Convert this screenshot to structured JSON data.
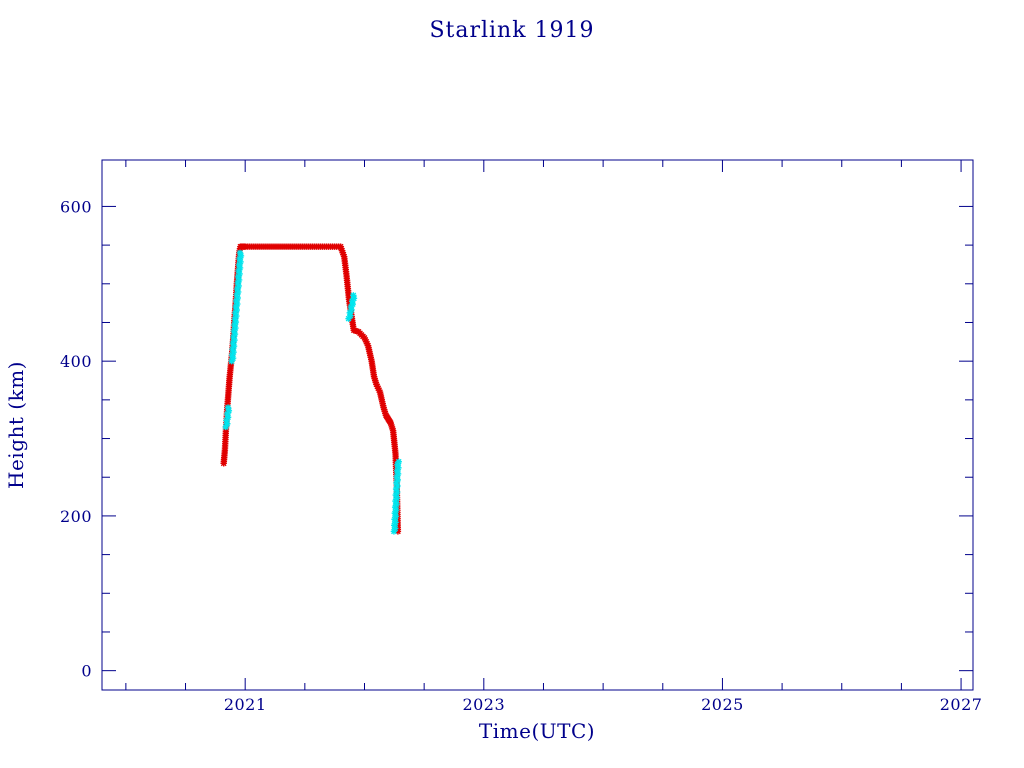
{
  "chart_data": {
    "type": "scatter",
    "title": "Starlink 1919",
    "xlabel": "Time(UTC)",
    "ylabel": "Height (km)",
    "xlim": [
      2019.8,
      2027.1
    ],
    "ylim": [
      -25,
      660
    ],
    "x_ticks": [
      2021,
      2023,
      2025,
      2027
    ],
    "x_tick_labels": [
      "2021",
      "2023",
      "2025",
      "2027"
    ],
    "y_ticks": [
      0,
      200,
      400,
      600
    ],
    "y_tick_labels": [
      "0",
      "200",
      "400",
      "600"
    ],
    "grid": false,
    "colors": {
      "axis": "#00008b",
      "text": "#00008b",
      "series_primary": "#e00000",
      "series_secondary": "#00e5ee",
      "line": "#000000"
    },
    "series": [
      {
        "marker": "asterisk",
        "x": [
          2020.82,
          2020.83,
          2020.84,
          2020.85,
          2020.86,
          2020.87,
          2020.88,
          2020.89,
          2020.9,
          2020.91,
          2020.92,
          2020.93,
          2020.94,
          2020.95,
          2020.96,
          2020.97,
          2020.98,
          2021.0,
          2021.1,
          2021.2,
          2021.3,
          2021.4,
          2021.5,
          2021.6,
          2021.7,
          2021.8,
          2021.83,
          2021.85,
          2021.87,
          2021.89,
          2021.91,
          2021.95,
          2022.0,
          2022.03,
          2022.06,
          2022.08,
          2022.1,
          2022.13,
          2022.16,
          2022.18,
          2022.2,
          2022.22,
          2022.24,
          2022.25,
          2022.26,
          2022.27,
          2022.28
        ],
        "y": [
          268,
          285,
          315,
          340,
          360,
          380,
          395,
          410,
          430,
          455,
          475,
          500,
          520,
          540,
          548,
          548,
          548,
          548,
          548,
          548,
          548,
          548,
          548,
          548,
          548,
          548,
          535,
          510,
          480,
          460,
          440,
          438,
          430,
          420,
          400,
          380,
          370,
          360,
          340,
          330,
          325,
          320,
          310,
          295,
          280,
          240,
          180
        ],
        "color_role": "series_primary"
      }
    ],
    "highlights": [
      {
        "x_range": [
          2020.84,
          2020.86
        ],
        "y_range": [
          315,
          340
        ],
        "color_role": "series_secondary"
      },
      {
        "x_range": [
          2020.89,
          2020.96
        ],
        "y_range": [
          400,
          540
        ],
        "color_role": "series_secondary"
      },
      {
        "x_range": [
          2021.87,
          2021.91
        ],
        "y_range": [
          455,
          485
        ],
        "color_role": "series_secondary"
      },
      {
        "x_range": [
          2022.25,
          2022.28
        ],
        "y_range": [
          180,
          270
        ],
        "color_role": "series_secondary"
      }
    ]
  }
}
